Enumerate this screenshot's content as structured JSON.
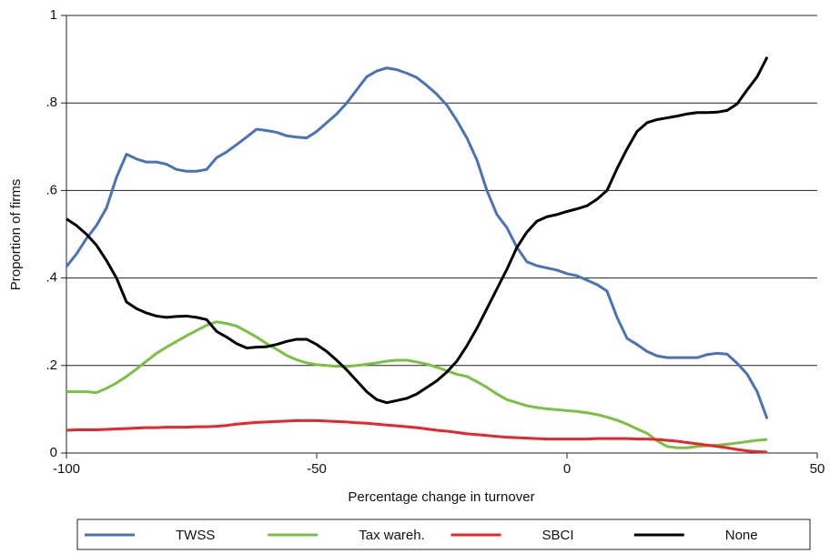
{
  "chart_data": {
    "type": "line",
    "x_label": "Percentage change in turnover",
    "y_label": "Proportion of firms",
    "x": [
      -100,
      -98,
      -96,
      -94,
      -92,
      -90,
      -88,
      -86,
      -84,
      -82,
      -80,
      -78,
      -76,
      -74,
      -72,
      -70,
      -68,
      -66,
      -64,
      -62,
      -60,
      -58,
      -56,
      -54,
      -52,
      -50,
      -48,
      -46,
      -44,
      -42,
      -40,
      -38,
      -36,
      -34,
      -32,
      -30,
      -28,
      -26,
      -24,
      -22,
      -20,
      -18,
      -16,
      -14,
      -12,
      -10,
      -8,
      -6,
      -4,
      -2,
      0,
      2,
      4,
      6,
      8,
      10,
      12,
      14,
      16,
      18,
      20,
      22,
      24,
      26,
      28,
      30,
      32,
      34,
      36,
      38,
      40
    ],
    "series": [
      {
        "name": "TWSS",
        "color": "#4a72b8",
        "values": [
          0.426,
          0.455,
          0.49,
          0.52,
          0.56,
          0.63,
          0.683,
          0.672,
          0.665,
          0.665,
          0.66,
          0.648,
          0.644,
          0.644,
          0.648,
          0.675,
          0.688,
          0.705,
          0.722,
          0.74,
          0.737,
          0.733,
          0.725,
          0.722,
          0.72,
          0.735,
          0.755,
          0.775,
          0.8,
          0.83,
          0.86,
          0.873,
          0.88,
          0.876,
          0.868,
          0.858,
          0.84,
          0.82,
          0.795,
          0.76,
          0.72,
          0.67,
          0.6,
          0.545,
          0.515,
          0.47,
          0.437,
          0.428,
          0.423,
          0.418,
          0.41,
          0.405,
          0.395,
          0.385,
          0.37,
          0.31,
          0.262,
          0.248,
          0.232,
          0.222,
          0.218,
          0.218,
          0.218,
          0.218,
          0.225,
          0.228,
          0.226,
          0.205,
          0.18,
          0.14,
          0.078
        ]
      },
      {
        "name": "Tax wareh.",
        "color": "#7ac143",
        "values": [
          0.14,
          0.14,
          0.14,
          0.138,
          0.148,
          0.16,
          0.175,
          0.192,
          0.21,
          0.228,
          0.242,
          0.255,
          0.268,
          0.28,
          0.292,
          0.3,
          0.296,
          0.29,
          0.278,
          0.265,
          0.25,
          0.237,
          0.223,
          0.213,
          0.206,
          0.202,
          0.2,
          0.198,
          0.198,
          0.2,
          0.203,
          0.206,
          0.21,
          0.212,
          0.212,
          0.208,
          0.203,
          0.196,
          0.188,
          0.18,
          0.175,
          0.163,
          0.15,
          0.135,
          0.122,
          0.115,
          0.108,
          0.104,
          0.101,
          0.099,
          0.097,
          0.095,
          0.092,
          0.088,
          0.082,
          0.075,
          0.066,
          0.055,
          0.045,
          0.028,
          0.015,
          0.012,
          0.012,
          0.015,
          0.017,
          0.018,
          0.02,
          0.023,
          0.026,
          0.029,
          0.031
        ]
      },
      {
        "name": "SBCI",
        "color": "#e8262a",
        "values": [
          0.052,
          0.053,
          0.053,
          0.053,
          0.054,
          0.055,
          0.056,
          0.057,
          0.058,
          0.058,
          0.059,
          0.059,
          0.059,
          0.06,
          0.06,
          0.061,
          0.063,
          0.066,
          0.068,
          0.07,
          0.071,
          0.072,
          0.073,
          0.074,
          0.074,
          0.074,
          0.073,
          0.072,
          0.071,
          0.069,
          0.068,
          0.066,
          0.064,
          0.062,
          0.06,
          0.058,
          0.055,
          0.052,
          0.05,
          0.047,
          0.044,
          0.042,
          0.04,
          0.038,
          0.036,
          0.035,
          0.034,
          0.033,
          0.032,
          0.032,
          0.032,
          0.032,
          0.032,
          0.033,
          0.033,
          0.033,
          0.033,
          0.032,
          0.032,
          0.031,
          0.029,
          0.027,
          0.024,
          0.021,
          0.018,
          0.015,
          0.012,
          0.008,
          0.005,
          0.003,
          0.002
        ]
      },
      {
        "name": "None",
        "color": "#000000",
        "values": [
          0.535,
          0.52,
          0.5,
          0.475,
          0.44,
          0.4,
          0.345,
          0.33,
          0.32,
          0.313,
          0.31,
          0.312,
          0.313,
          0.31,
          0.305,
          0.278,
          0.265,
          0.25,
          0.24,
          0.242,
          0.243,
          0.248,
          0.255,
          0.26,
          0.26,
          0.248,
          0.232,
          0.212,
          0.19,
          0.165,
          0.14,
          0.122,
          0.115,
          0.12,
          0.125,
          0.135,
          0.15,
          0.165,
          0.185,
          0.21,
          0.245,
          0.285,
          0.33,
          0.375,
          0.42,
          0.47,
          0.505,
          0.53,
          0.54,
          0.545,
          0.552,
          0.558,
          0.565,
          0.58,
          0.6,
          0.65,
          0.695,
          0.735,
          0.755,
          0.762,
          0.766,
          0.77,
          0.775,
          0.778,
          0.778,
          0.779,
          0.783,
          0.798,
          0.83,
          0.86,
          0.905
        ]
      }
    ],
    "xlim": [
      -100,
      50
    ],
    "xticks": [
      -100,
      -50,
      0,
      50
    ],
    "ylim": [
      0,
      1
    ],
    "yticks": [
      0,
      {
        "value": 0.2,
        "label": ".2"
      },
      {
        "value": 0.4,
        "label": ".4"
      },
      {
        "value": 0.6,
        "label": ".6"
      },
      {
        "value": 0.8,
        "label": ".8"
      },
      1
    ],
    "grid": true,
    "legend": "bottom"
  }
}
